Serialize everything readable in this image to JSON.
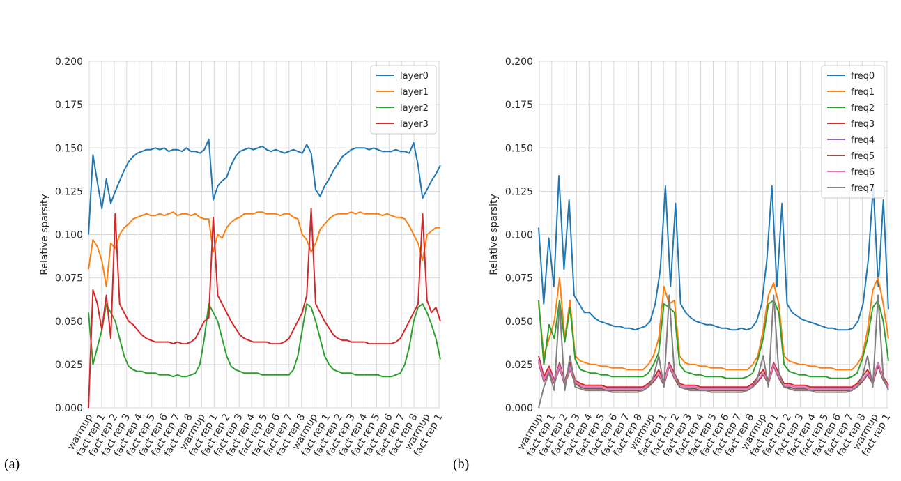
{
  "chart_data": [
    {
      "type": "line",
      "panel_label": "(a)",
      "ylabel": "Relative sparsity",
      "ylim": [
        0,
        0.2
      ],
      "yticks": [
        "0.000",
        "0.025",
        "0.050",
        "0.075",
        "0.100",
        "0.125",
        "0.150",
        "0.175",
        "0.200"
      ],
      "xlabels": [
        "warmup",
        "fact rep 1",
        "fact rep 2",
        "fact rep 3",
        "fact rep 4",
        "fact rep 5",
        "fact rep 6",
        "fact rep 7",
        "fact rep 8",
        "warmup",
        "fact rep 1",
        "fact rep 2",
        "fact rep 3",
        "fact rep 4",
        "fact rep 5",
        "fact rep 6",
        "fact rep 7",
        "fact rep 8",
        "warmup",
        "fact rep 1",
        "fact rep 2",
        "fact rep 3",
        "fact rep 4",
        "fact rep 5",
        "fact rep 6",
        "fact rep 7",
        "fact rep 8",
        "warmup",
        "fact rep 1"
      ],
      "grid": true,
      "legend_position": "top-right",
      "series": [
        {
          "name": "layer0",
          "color": "#1f77b4",
          "values": [
            0.1,
            0.146,
            0.13,
            0.115,
            0.132,
            0.118,
            0.125,
            0.131,
            0.137,
            0.142,
            0.145,
            0.147,
            0.148,
            0.149,
            0.149,
            0.15,
            0.149,
            0.15,
            0.148,
            0.149,
            0.149,
            0.148,
            0.15,
            0.148,
            0.148,
            0.147,
            0.149,
            0.155,
            0.12,
            0.128,
            0.131,
            0.133,
            0.14,
            0.145,
            0.148,
            0.149,
            0.15,
            0.149,
            0.15,
            0.151,
            0.149,
            0.148,
            0.149,
            0.148,
            0.147,
            0.148,
            0.149,
            0.148,
            0.147,
            0.152,
            0.147,
            0.126,
            0.122,
            0.128,
            0.132,
            0.137,
            0.141,
            0.145,
            0.147,
            0.149,
            0.15,
            0.15,
            0.15,
            0.149,
            0.15,
            0.149,
            0.148,
            0.148,
            0.148,
            0.149,
            0.148,
            0.148,
            0.147,
            0.153,
            0.14,
            0.121,
            0.126,
            0.131,
            0.135,
            0.14
          ]
        },
        {
          "name": "layer1",
          "color": "#ff7f0e",
          "values": [
            0.08,
            0.097,
            0.093,
            0.085,
            0.07,
            0.095,
            0.092,
            0.1,
            0.104,
            0.106,
            0.109,
            0.11,
            0.111,
            0.112,
            0.111,
            0.111,
            0.112,
            0.111,
            0.112,
            0.113,
            0.111,
            0.112,
            0.112,
            0.111,
            0.112,
            0.11,
            0.109,
            0.109,
            0.09,
            0.1,
            0.098,
            0.104,
            0.107,
            0.109,
            0.11,
            0.112,
            0.112,
            0.112,
            0.113,
            0.113,
            0.112,
            0.112,
            0.112,
            0.111,
            0.112,
            0.112,
            0.11,
            0.109,
            0.1,
            0.097,
            0.09,
            0.095,
            0.103,
            0.106,
            0.109,
            0.111,
            0.112,
            0.112,
            0.112,
            0.113,
            0.112,
            0.113,
            0.112,
            0.112,
            0.112,
            0.112,
            0.111,
            0.112,
            0.111,
            0.11,
            0.11,
            0.109,
            0.105,
            0.1,
            0.095,
            0.085,
            0.1,
            0.102,
            0.104,
            0.104
          ]
        },
        {
          "name": "layer2",
          "color": "#2ca02c",
          "values": [
            0.055,
            0.025,
            0.035,
            0.045,
            0.06,
            0.055,
            0.05,
            0.04,
            0.03,
            0.024,
            0.022,
            0.021,
            0.021,
            0.02,
            0.02,
            0.02,
            0.019,
            0.019,
            0.019,
            0.018,
            0.019,
            0.018,
            0.018,
            0.019,
            0.02,
            0.025,
            0.04,
            0.06,
            0.055,
            0.05,
            0.04,
            0.03,
            0.024,
            0.022,
            0.021,
            0.02,
            0.02,
            0.02,
            0.02,
            0.019,
            0.019,
            0.019,
            0.019,
            0.019,
            0.019,
            0.019,
            0.022,
            0.03,
            0.045,
            0.06,
            0.058,
            0.05,
            0.04,
            0.03,
            0.025,
            0.022,
            0.021,
            0.02,
            0.02,
            0.02,
            0.019,
            0.019,
            0.019,
            0.019,
            0.019,
            0.019,
            0.018,
            0.018,
            0.018,
            0.019,
            0.02,
            0.025,
            0.035,
            0.05,
            0.058,
            0.06,
            0.055,
            0.048,
            0.04,
            0.028
          ]
        },
        {
          "name": "layer3",
          "color": "#d62728",
          "values": [
            0.0,
            0.068,
            0.06,
            0.045,
            0.065,
            0.04,
            0.112,
            0.06,
            0.055,
            0.05,
            0.048,
            0.045,
            0.042,
            0.04,
            0.039,
            0.038,
            0.038,
            0.038,
            0.038,
            0.037,
            0.038,
            0.037,
            0.037,
            0.038,
            0.04,
            0.045,
            0.05,
            0.052,
            0.11,
            0.065,
            0.06,
            0.055,
            0.05,
            0.046,
            0.042,
            0.04,
            0.039,
            0.038,
            0.038,
            0.038,
            0.038,
            0.037,
            0.037,
            0.037,
            0.038,
            0.04,
            0.045,
            0.05,
            0.055,
            0.065,
            0.115,
            0.06,
            0.055,
            0.05,
            0.046,
            0.042,
            0.04,
            0.039,
            0.039,
            0.038,
            0.038,
            0.038,
            0.038,
            0.037,
            0.037,
            0.037,
            0.037,
            0.037,
            0.037,
            0.038,
            0.04,
            0.045,
            0.05,
            0.055,
            0.06,
            0.112,
            0.062,
            0.055,
            0.058,
            0.05
          ]
        }
      ]
    },
    {
      "type": "line",
      "panel_label": "(b)",
      "ylabel": "Relative sparsity",
      "ylim": [
        0,
        0.2
      ],
      "yticks": [
        "0.000",
        "0.025",
        "0.050",
        "0.075",
        "0.100",
        "0.125",
        "0.150",
        "0.175",
        "0.200"
      ],
      "xlabels": [
        "warmup",
        "fact rep 1",
        "fact rep 2",
        "fact rep 3",
        "fact rep 4",
        "fact rep 5",
        "fact rep 6",
        "fact rep 7",
        "fact rep 8",
        "warmup",
        "fact rep 1",
        "fact rep 2",
        "fact rep 3",
        "fact rep 4",
        "fact rep 5",
        "fact rep 6",
        "fact rep 7",
        "fact rep 8",
        "warmup",
        "fact rep 1",
        "fact rep 2",
        "fact rep 3",
        "fact rep 4",
        "fact rep 5",
        "fact rep 6",
        "fact rep 7",
        "fact rep 8",
        "warmup",
        "fact rep 1"
      ],
      "grid": true,
      "legend_position": "top-right",
      "series": [
        {
          "name": "freq0",
          "color": "#1f77b4",
          "values": [
            0.104,
            0.06,
            0.098,
            0.07,
            0.134,
            0.08,
            0.12,
            0.065,
            0.06,
            0.055,
            0.055,
            0.052,
            0.05,
            0.049,
            0.048,
            0.047,
            0.047,
            0.046,
            0.046,
            0.045,
            0.046,
            0.047,
            0.05,
            0.06,
            0.08,
            0.128,
            0.07,
            0.118,
            0.06,
            0.055,
            0.052,
            0.05,
            0.049,
            0.048,
            0.048,
            0.047,
            0.046,
            0.046,
            0.045,
            0.045,
            0.046,
            0.045,
            0.046,
            0.05,
            0.06,
            0.085,
            0.128,
            0.07,
            0.118,
            0.06,
            0.055,
            0.053,
            0.051,
            0.05,
            0.049,
            0.048,
            0.047,
            0.046,
            0.046,
            0.045,
            0.045,
            0.045,
            0.046,
            0.05,
            0.06,
            0.085,
            0.128,
            0.07,
            0.12,
            0.057
          ]
        },
        {
          "name": "freq1",
          "color": "#ff7f0e",
          "values": [
            0.06,
            0.03,
            0.04,
            0.05,
            0.075,
            0.04,
            0.062,
            0.03,
            0.027,
            0.026,
            0.025,
            0.025,
            0.024,
            0.024,
            0.023,
            0.023,
            0.023,
            0.022,
            0.022,
            0.022,
            0.022,
            0.025,
            0.03,
            0.04,
            0.07,
            0.06,
            0.062,
            0.03,
            0.026,
            0.025,
            0.025,
            0.024,
            0.024,
            0.023,
            0.023,
            0.023,
            0.022,
            0.022,
            0.022,
            0.022,
            0.022,
            0.025,
            0.03,
            0.045,
            0.065,
            0.072,
            0.06,
            0.03,
            0.027,
            0.026,
            0.025,
            0.025,
            0.024,
            0.024,
            0.023,
            0.023,
            0.023,
            0.022,
            0.022,
            0.022,
            0.022,
            0.025,
            0.03,
            0.045,
            0.068,
            0.075,
            0.06,
            0.04
          ]
        },
        {
          "name": "freq2",
          "color": "#2ca02c",
          "values": [
            0.062,
            0.025,
            0.048,
            0.04,
            0.062,
            0.038,
            0.058,
            0.028,
            0.022,
            0.021,
            0.02,
            0.02,
            0.019,
            0.019,
            0.018,
            0.018,
            0.018,
            0.018,
            0.018,
            0.018,
            0.018,
            0.02,
            0.025,
            0.032,
            0.06,
            0.058,
            0.055,
            0.025,
            0.021,
            0.02,
            0.019,
            0.019,
            0.018,
            0.018,
            0.018,
            0.018,
            0.017,
            0.017,
            0.017,
            0.017,
            0.018,
            0.02,
            0.028,
            0.04,
            0.06,
            0.062,
            0.055,
            0.025,
            0.021,
            0.02,
            0.019,
            0.019,
            0.018,
            0.018,
            0.018,
            0.018,
            0.017,
            0.017,
            0.017,
            0.017,
            0.018,
            0.02,
            0.028,
            0.04,
            0.058,
            0.062,
            0.05,
            0.027
          ]
        },
        {
          "name": "freq3",
          "color": "#d62728",
          "values": [
            0.03,
            0.018,
            0.024,
            0.016,
            0.026,
            0.015,
            0.026,
            0.016,
            0.014,
            0.013,
            0.013,
            0.013,
            0.013,
            0.012,
            0.012,
            0.012,
            0.012,
            0.012,
            0.012,
            0.012,
            0.012,
            0.014,
            0.017,
            0.022,
            0.015,
            0.026,
            0.02,
            0.014,
            0.013,
            0.013,
            0.013,
            0.012,
            0.012,
            0.012,
            0.012,
            0.012,
            0.012,
            0.012,
            0.012,
            0.012,
            0.012,
            0.014,
            0.018,
            0.022,
            0.016,
            0.026,
            0.02,
            0.014,
            0.014,
            0.013,
            0.013,
            0.013,
            0.012,
            0.012,
            0.012,
            0.012,
            0.012,
            0.012,
            0.012,
            0.012,
            0.012,
            0.014,
            0.018,
            0.022,
            0.016,
            0.026,
            0.018,
            0.013
          ]
        },
        {
          "name": "freq4",
          "color": "#9467bd",
          "values": [
            0.028,
            0.016,
            0.022,
            0.015,
            0.025,
            0.014,
            0.024,
            0.015,
            0.013,
            0.012,
            0.012,
            0.012,
            0.012,
            0.011,
            0.011,
            0.011,
            0.011,
            0.011,
            0.011,
            0.011,
            0.011,
            0.013,
            0.016,
            0.02,
            0.014,
            0.025,
            0.018,
            0.013,
            0.012,
            0.012,
            0.012,
            0.011,
            0.011,
            0.011,
            0.011,
            0.011,
            0.011,
            0.011,
            0.011,
            0.011,
            0.011,
            0.013,
            0.016,
            0.02,
            0.015,
            0.025,
            0.018,
            0.013,
            0.013,
            0.012,
            0.012,
            0.012,
            0.011,
            0.011,
            0.011,
            0.011,
            0.011,
            0.011,
            0.011,
            0.011,
            0.011,
            0.013,
            0.016,
            0.02,
            0.015,
            0.025,
            0.017,
            0.012
          ]
        },
        {
          "name": "freq5",
          "color": "#8c564b",
          "values": [
            0.026,
            0.015,
            0.021,
            0.014,
            0.023,
            0.013,
            0.022,
            0.014,
            0.012,
            0.011,
            0.011,
            0.011,
            0.011,
            0.01,
            0.01,
            0.01,
            0.01,
            0.01,
            0.01,
            0.01,
            0.01,
            0.012,
            0.015,
            0.019,
            0.013,
            0.024,
            0.017,
            0.012,
            0.011,
            0.011,
            0.011,
            0.01,
            0.01,
            0.01,
            0.01,
            0.01,
            0.01,
            0.01,
            0.01,
            0.01,
            0.01,
            0.012,
            0.015,
            0.019,
            0.014,
            0.024,
            0.017,
            0.012,
            0.012,
            0.011,
            0.011,
            0.011,
            0.01,
            0.01,
            0.01,
            0.01,
            0.01,
            0.01,
            0.01,
            0.01,
            0.01,
            0.012,
            0.015,
            0.019,
            0.014,
            0.024,
            0.016,
            0.011
          ]
        },
        {
          "name": "freq6",
          "color": "#e377c2",
          "values": [
            0.027,
            0.016,
            0.022,
            0.015,
            0.024,
            0.014,
            0.023,
            0.015,
            0.013,
            0.012,
            0.012,
            0.012,
            0.012,
            0.011,
            0.011,
            0.011,
            0.011,
            0.011,
            0.011,
            0.011,
            0.011,
            0.013,
            0.016,
            0.02,
            0.014,
            0.025,
            0.018,
            0.013,
            0.012,
            0.012,
            0.012,
            0.011,
            0.011,
            0.011,
            0.011,
            0.011,
            0.011,
            0.011,
            0.011,
            0.011,
            0.011,
            0.013,
            0.016,
            0.02,
            0.015,
            0.025,
            0.018,
            0.013,
            0.013,
            0.012,
            0.012,
            0.012,
            0.011,
            0.011,
            0.011,
            0.011,
            0.011,
            0.011,
            0.011,
            0.011,
            0.011,
            0.013,
            0.016,
            0.02,
            0.015,
            0.026,
            0.017,
            0.012
          ]
        },
        {
          "name": "freq7",
          "color": "#7f7f7f",
          "values": [
            0.0,
            0.012,
            0.02,
            0.01,
            0.06,
            0.01,
            0.03,
            0.012,
            0.011,
            0.01,
            0.01,
            0.01,
            0.01,
            0.01,
            0.009,
            0.009,
            0.009,
            0.009,
            0.009,
            0.009,
            0.01,
            0.012,
            0.018,
            0.03,
            0.012,
            0.065,
            0.02,
            0.012,
            0.011,
            0.01,
            0.01,
            0.01,
            0.01,
            0.009,
            0.009,
            0.009,
            0.009,
            0.009,
            0.009,
            0.009,
            0.01,
            0.012,
            0.018,
            0.03,
            0.012,
            0.065,
            0.02,
            0.012,
            0.011,
            0.01,
            0.01,
            0.01,
            0.01,
            0.009,
            0.009,
            0.009,
            0.009,
            0.009,
            0.009,
            0.009,
            0.01,
            0.012,
            0.018,
            0.03,
            0.012,
            0.065,
            0.018,
            0.01
          ]
        }
      ]
    }
  ]
}
